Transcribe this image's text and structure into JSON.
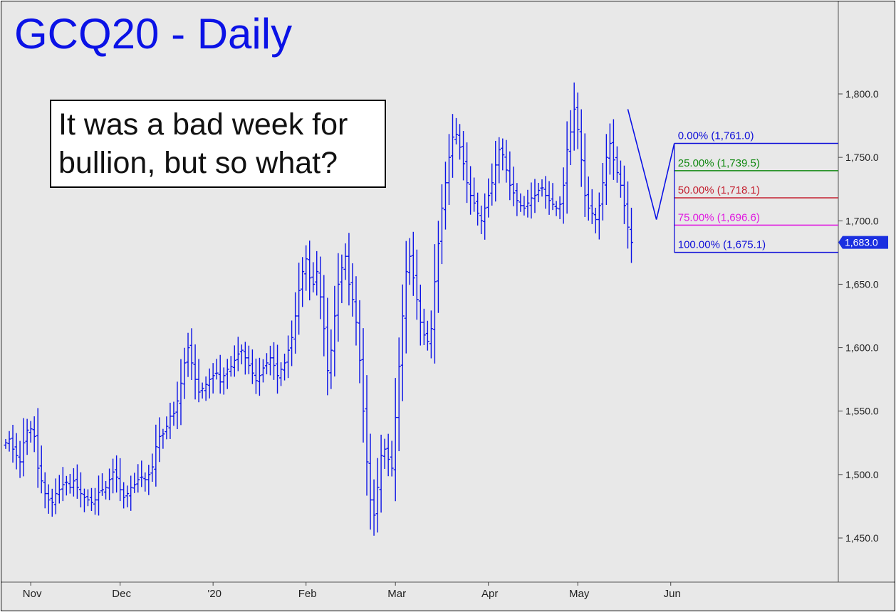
{
  "title": "GCQ20 - Daily",
  "annotation": {
    "line1": "It was a bad week for",
    "line2": "bullion, but so what?"
  },
  "price_tag": "1,683.0",
  "colors": {
    "background": "#e8e8e8",
    "price": "#0b12e6",
    "fib_0": "#1010d8",
    "fib_25": "#118811",
    "fib_50": "#c42030",
    "fib_75": "#e018e0",
    "fib_100": "#1010d8"
  },
  "chart_data": {
    "type": "bar",
    "subtype": "ohlc",
    "title": "GCQ20 - Daily",
    "ylim": [
      1425,
      1900
    ],
    "y_ticks": [
      "1,450.0",
      "1,500.0",
      "1,550.0",
      "1,600.0",
      "1,650.0",
      "1,700.0",
      "1,750.0",
      "1,800.0"
    ],
    "y_tick_values": [
      1450,
      1500,
      1550,
      1600,
      1650,
      1700,
      1750,
      1800
    ],
    "x_ticks": [
      "Nov",
      "Dec",
      "'20",
      "Feb",
      "Mar",
      "Apr",
      "May",
      "Jun"
    ],
    "x_tick_bar_index": [
      7,
      32,
      58,
      84,
      109,
      135,
      160,
      186
    ],
    "last_price": 1683.0,
    "fib_levels": [
      {
        "label": "0.00% (1,761.0)",
        "value": 1761.0
      },
      {
        "label": "25.00% (1,739.5)",
        "value": 1739.5
      },
      {
        "label": "50.00% (1,718.1)",
        "value": 1718.1
      },
      {
        "label": "75.00% (1,696.6)",
        "value": 1696.6
      },
      {
        "label": "100.00% (1,675.1)",
        "value": 1675.1
      }
    ],
    "swing_points": [
      {
        "bar": 174,
        "price": 1788
      },
      {
        "bar": 182,
        "price": 1701
      },
      {
        "bar": 187,
        "price": 1761
      }
    ],
    "close": [
      1525,
      1528,
      1520,
      1515,
      1510,
      1525,
      1535,
      1536,
      1530,
      1505,
      1495,
      1485,
      1480,
      1478,
      1485,
      1488,
      1492,
      1494,
      1490,
      1495,
      1490,
      1485,
      1482,
      1480,
      1478,
      1480,
      1486,
      1488,
      1490,
      1496,
      1502,
      1498,
      1488,
      1482,
      1485,
      1490,
      1492,
      1496,
      1498,
      1496,
      1500,
      1506,
      1522,
      1530,
      1532,
      1538,
      1546,
      1548,
      1558,
      1572,
      1588,
      1600,
      1588,
      1575,
      1565,
      1568,
      1571,
      1575,
      1578,
      1580,
      1573,
      1578,
      1583,
      1585,
      1590,
      1595,
      1598,
      1592,
      1586,
      1580,
      1574,
      1578,
      1584,
      1588,
      1592,
      1586,
      1578,
      1583,
      1588,
      1598,
      1608,
      1625,
      1645,
      1660,
      1670,
      1655,
      1650,
      1660,
      1640,
      1615,
      1582,
      1598,
      1625,
      1650,
      1663,
      1672,
      1650,
      1638,
      1620,
      1590,
      1550,
      1510,
      1480,
      1468,
      1490,
      1515,
      1520,
      1512,
      1505,
      1545,
      1585,
      1625,
      1660,
      1672,
      1655,
      1638,
      1620,
      1610,
      1605,
      1615,
      1652,
      1682,
      1710,
      1730,
      1750,
      1766,
      1768,
      1758,
      1745,
      1730,
      1720,
      1714,
      1706,
      1700,
      1710,
      1720,
      1730,
      1744,
      1756,
      1752,
      1740,
      1728,
      1722,
      1716,
      1712,
      1710,
      1714,
      1718,
      1720,
      1724,
      1726,
      1720,
      1716,
      1713,
      1710,
      1713,
      1728,
      1756,
      1770,
      1788,
      1772,
      1748,
      1720,
      1710,
      1706,
      1701,
      1712,
      1730,
      1750,
      1761,
      1748,
      1738,
      1728,
      1712,
      1695,
      1683
    ]
  }
}
